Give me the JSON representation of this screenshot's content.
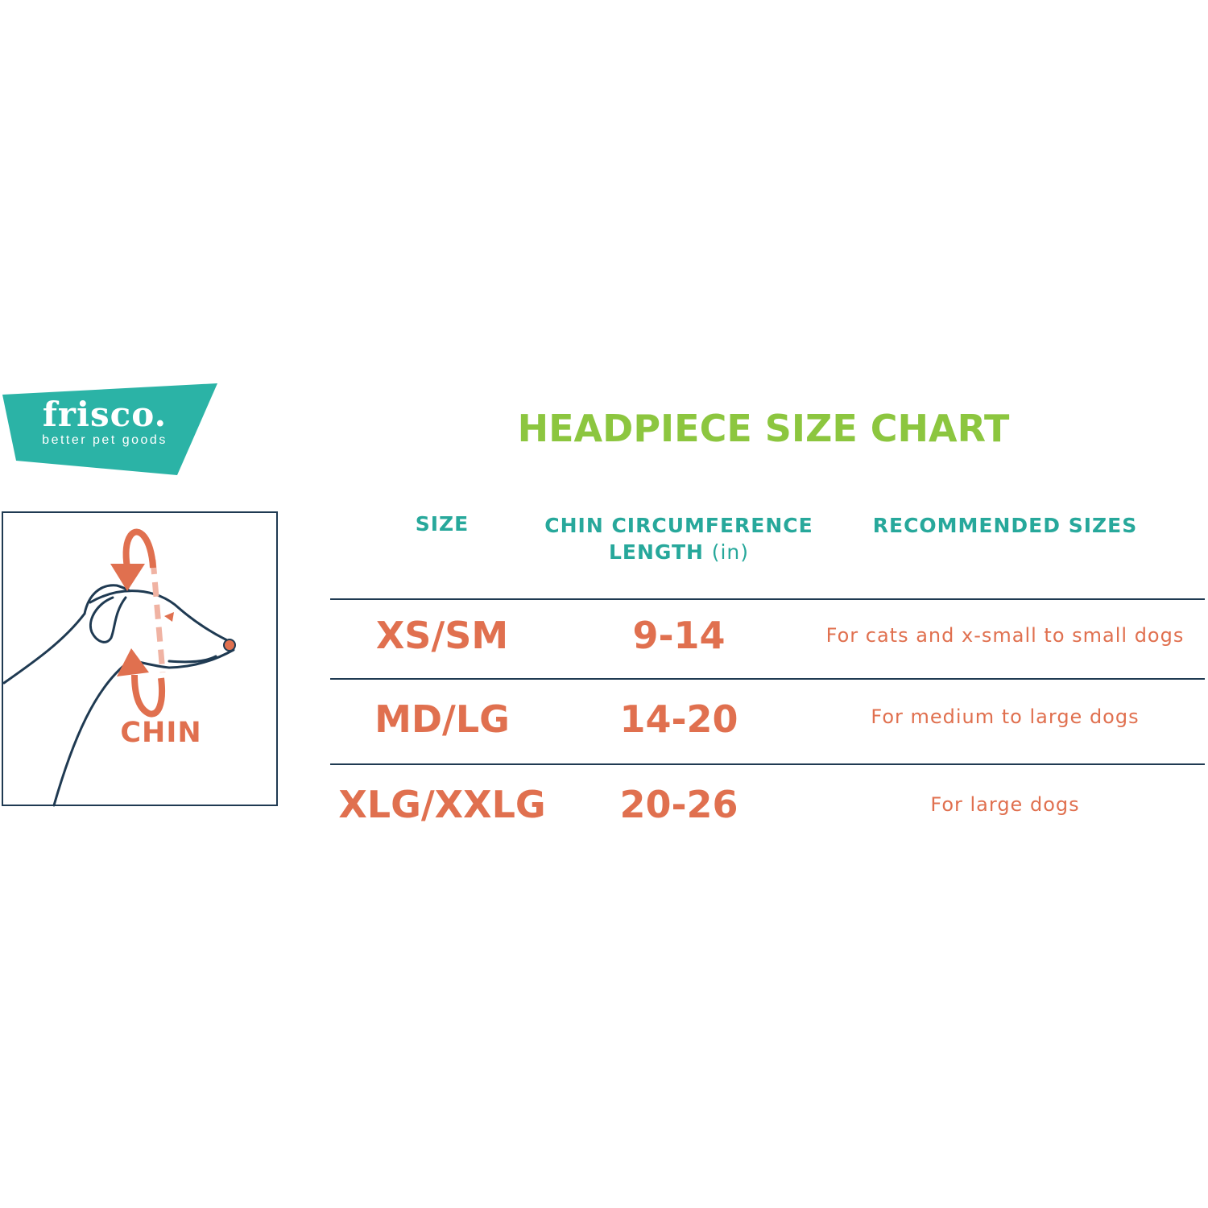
{
  "logo": {
    "brand": "frisco.",
    "tagline": "better pet goods",
    "color": "#2bb3a6"
  },
  "illustration": {
    "label": "CHIN",
    "accent_color": "#e0704f",
    "line_color": "#1f3a52"
  },
  "title": "HEADPIECE SIZE CHART",
  "table": {
    "headers": {
      "size": "SIZE",
      "chin_line1": "CHIN CIRCUMFERENCE",
      "chin_line2": "LENGTH",
      "chin_unit": "(in)",
      "recommended": "RECOMMENDED SIZES"
    },
    "rows": [
      {
        "size": "XS/SM",
        "range": "9-14",
        "recommended": "For cats and x-small to small dogs"
      },
      {
        "size": "MD/LG",
        "range": "14-20",
        "recommended": "For medium to large dogs"
      },
      {
        "size": "XLG/XXLG",
        "range": "20-26",
        "recommended": "For large dogs"
      }
    ]
  },
  "colors": {
    "title": "#8cc63f",
    "header": "#27a89b",
    "value": "#e0704f",
    "rule": "#1f3a52"
  }
}
